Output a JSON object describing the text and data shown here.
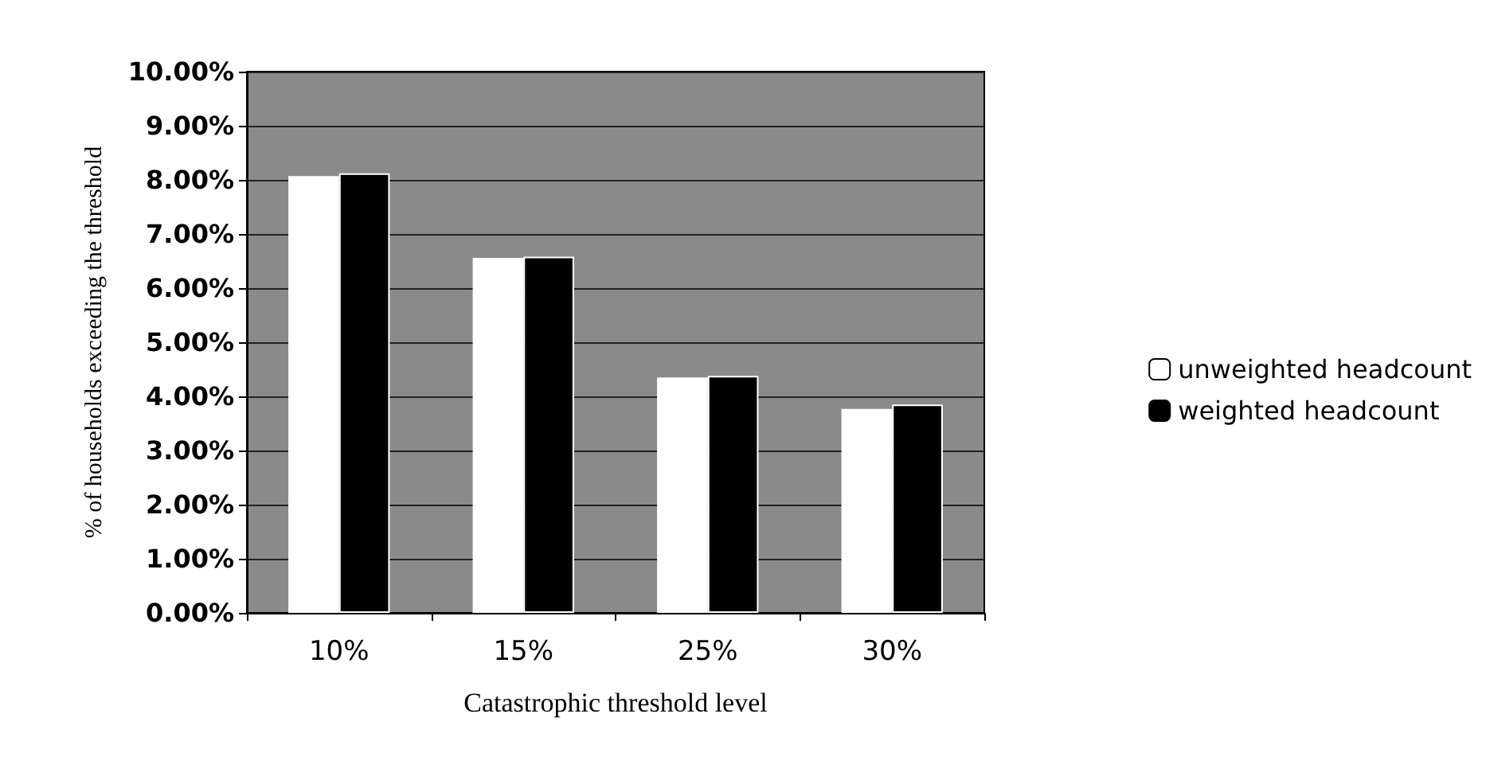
{
  "chart_data": {
    "type": "bar",
    "xlabel": "Catastrophic threshold level",
    "ylabel": "% of households exceeding the threshold",
    "categories": [
      "10%",
      "15%",
      "25%",
      "30%"
    ],
    "series": [
      {
        "name": "unweighted headcount",
        "color": "#ffffff",
        "values": [
          8.07,
          6.56,
          4.35,
          3.77
        ]
      },
      {
        "name": "weighted headcount",
        "color": "#000000",
        "values": [
          8.12,
          6.58,
          4.38,
          3.85
        ]
      }
    ],
    "ylim": [
      0,
      10
    ],
    "yticks": [
      {
        "value": 0,
        "label": "0.00%"
      },
      {
        "value": 1,
        "label": "1.00%"
      },
      {
        "value": 2,
        "label": "2.00%"
      },
      {
        "value": 3,
        "label": "3.00%"
      },
      {
        "value": 4,
        "label": "4.00%"
      },
      {
        "value": 5,
        "label": "5.00%"
      },
      {
        "value": 6,
        "label": "6.00%"
      },
      {
        "value": 7,
        "label": "7.00%"
      },
      {
        "value": 8,
        "label": "8.00%"
      },
      {
        "value": 9,
        "label": "9.00%"
      },
      {
        "value": 10,
        "label": "10.00%"
      }
    ],
    "grid": "y",
    "legend": "right"
  }
}
